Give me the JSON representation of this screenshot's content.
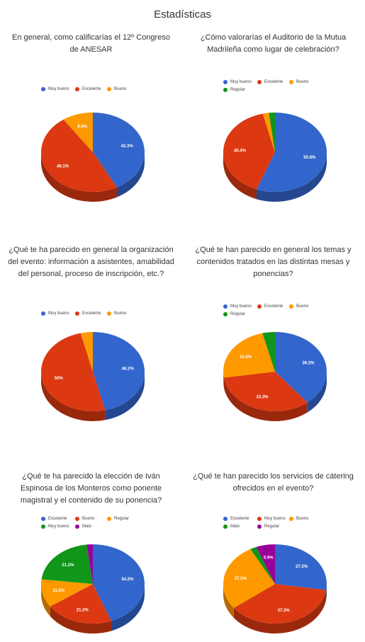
{
  "page": {
    "title": "Estadísticas"
  },
  "colors": {
    "blue": "#3366cc",
    "red": "#dc3912",
    "orange": "#ff9900",
    "green": "#109618",
    "purple": "#990099"
  },
  "chart_data": [
    {
      "type": "pie",
      "title": "En general, como calificarías el 12º Congreso de ANESAR",
      "legend": [
        "Muy bueno",
        "Excelente",
        "Bueno"
      ],
      "slices": [
        {
          "label": "Muy bueno",
          "value": 42.3,
          "color": "#3366cc",
          "text": "42.3%"
        },
        {
          "label": "Excelente",
          "value": 48.1,
          "color": "#dc3912",
          "text": "48.1%"
        },
        {
          "label": "Bueno",
          "value": 9.6,
          "color": "#ff9900",
          "text": "9.6%"
        }
      ]
    },
    {
      "type": "pie",
      "title": "¿Cómo valorarías el Auditorio de la Mutua Madrileña como lugar de celebración?",
      "legend": [
        "Muy bueno",
        "Excelente",
        "Bueno",
        "Regular"
      ],
      "slices": [
        {
          "label": "Muy bueno",
          "value": 55.8,
          "color": "#3366cc",
          "text": "55.8%"
        },
        {
          "label": "Excelente",
          "value": 40.4,
          "color": "#dc3912",
          "text": "40.4%"
        },
        {
          "label": "Bueno",
          "value": 1.9,
          "color": "#ff9900",
          "text": ""
        },
        {
          "label": "Regular",
          "value": 1.9,
          "color": "#109618",
          "text": ""
        }
      ]
    },
    {
      "type": "pie",
      "title": "¿Qué te ha parecido en general la organización del evento: información a asistentes, amabilidad del personal, proceso de inscripción, etc.?",
      "legend": [
        "Muy bueno",
        "Excelente",
        "Bueno"
      ],
      "slices": [
        {
          "label": "Muy bueno",
          "value": 46.2,
          "color": "#3366cc",
          "text": "46.2%"
        },
        {
          "label": "Excelente",
          "value": 50,
          "color": "#dc3912",
          "text": "50%"
        },
        {
          "label": "Bueno",
          "value": 3.8,
          "color": "#ff9900",
          "text": ""
        }
      ]
    },
    {
      "type": "pie",
      "title": "¿Qué te han parecido en general los temas y contenidos tratados en las distintas mesas y ponencias?",
      "legend": [
        "Muy bueno",
        "Excelente",
        "Bueno",
        "Regular"
      ],
      "slices": [
        {
          "label": "Muy bueno",
          "value": 39.2,
          "color": "#3366cc",
          "text": "39.2%"
        },
        {
          "label": "Excelente",
          "value": 33.3,
          "color": "#dc3912",
          "text": "33.3%"
        },
        {
          "label": "Bueno",
          "value": 23.5,
          "color": "#ff9900",
          "text": "23.5%"
        },
        {
          "label": "Regular",
          "value": 3.9,
          "color": "#109618",
          "text": ""
        }
      ]
    },
    {
      "type": "pie",
      "title": "¿Qué te ha parecido la elección de Iván Espinosa de los Monteros como ponente magistral y el contenido de su ponencia?",
      "legend": [
        "Excelente",
        "Bueno",
        "Regular",
        "Muy bueno",
        "Malo"
      ],
      "slices": [
        {
          "label": "Excelente",
          "value": 44.2,
          "color": "#3366cc",
          "text": "44.2%"
        },
        {
          "label": "Bueno",
          "value": 21.2,
          "color": "#dc3912",
          "text": "21.2%"
        },
        {
          "label": "Regular",
          "value": 11.5,
          "color": "#ff9900",
          "text": "11.5%"
        },
        {
          "label": "Muy bueno",
          "value": 21.2,
          "color": "#109618",
          "text": "21.2%"
        },
        {
          "label": "Malo",
          "value": 1.9,
          "color": "#990099",
          "text": ""
        }
      ]
    },
    {
      "type": "pie",
      "title": "¿Qué te han parecido los servicios de cátering ofrecidos en el evento?",
      "legend": [
        "Excelente",
        "Muy bueno",
        "Bueno",
        "Malo",
        "Regular"
      ],
      "slices": [
        {
          "label": "Excelente",
          "value": 27.5,
          "color": "#3366cc",
          "text": "27.5%"
        },
        {
          "label": "Muy bueno",
          "value": 37.3,
          "color": "#dc3912",
          "text": "37.3%"
        },
        {
          "label": "Bueno",
          "value": 27.5,
          "color": "#ff9900",
          "text": "27.5%"
        },
        {
          "label": "Malo",
          "value": 2.0,
          "color": "#109618",
          "text": ""
        },
        {
          "label": "Regular",
          "value": 5.9,
          "color": "#990099",
          "text": "5.9%"
        }
      ]
    }
  ]
}
